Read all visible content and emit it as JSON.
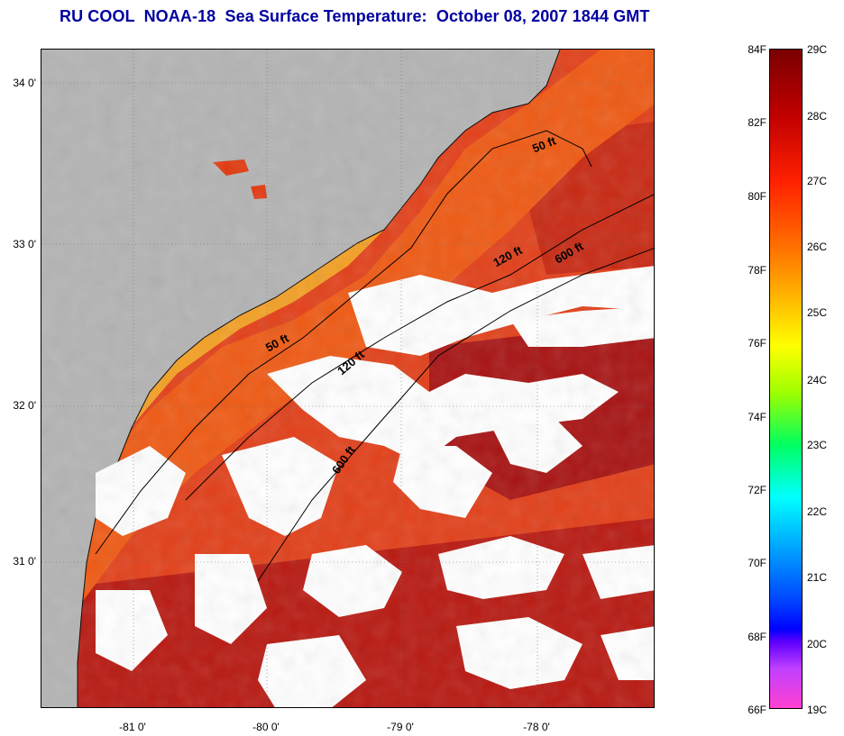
{
  "title": "RU COOL  NOAA-18  Sea Surface Temperature:  October 08, 2007 1844 GMT",
  "map": {
    "lat_labels": [
      "34 0'",
      "33 0'",
      "32 0'",
      "31 0'"
    ],
    "lon_labels": [
      "-81 0'",
      "-80 0'",
      "-79 0'",
      "-78 0'"
    ],
    "contours": [
      {
        "label": "50 ft"
      },
      {
        "label": "120 ft"
      },
      {
        "label": "600 ft"
      },
      {
        "label": "50 ft"
      },
      {
        "label": "120 ft"
      },
      {
        "label": "600 ft"
      }
    ],
    "colors": {
      "land": "#b4b4b4",
      "cloud": "#ffffff",
      "warm": "#e23a10",
      "hot": "#a31010",
      "coastal": "#f5a020",
      "orange": "#ef5a14"
    }
  },
  "colorbar": {
    "fahrenheit": [
      "84F",
      "82F",
      "80F",
      "78F",
      "76F",
      "74F",
      "72F",
      "70F",
      "68F",
      "66F"
    ],
    "celsius": [
      "29C",
      "28C",
      "27C",
      "26C",
      "25C",
      "24C",
      "23C",
      "22C",
      "21C",
      "20C",
      "19C"
    ]
  }
}
